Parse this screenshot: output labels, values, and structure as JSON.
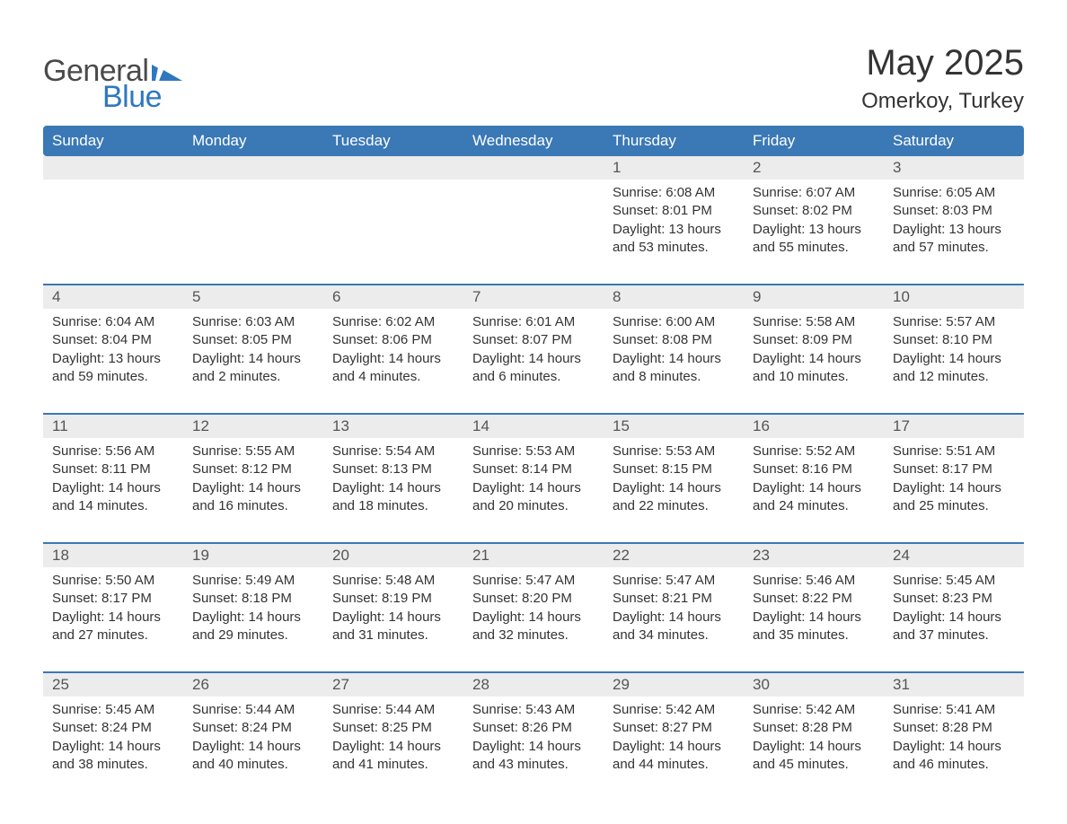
{
  "brand": {
    "part1": "General",
    "part2": "Blue"
  },
  "title": "May 2025",
  "location": "Omerkoy, Turkey",
  "colors": {
    "header_bg": "#3a78b6",
    "header_text": "#ffffff",
    "daynum_bg": "#ececec",
    "text": "#333333",
    "logo_gray": "#4a4a4a",
    "logo_blue": "#2f78bf",
    "page_bg": "#ffffff"
  },
  "day_headers": [
    "Sunday",
    "Monday",
    "Tuesday",
    "Wednesday",
    "Thursday",
    "Friday",
    "Saturday"
  ],
  "weeks": [
    [
      {
        "empty": true
      },
      {
        "empty": true
      },
      {
        "empty": true
      },
      {
        "empty": true
      },
      {
        "n": "1",
        "sunrise": "6:08 AM",
        "sunset": "8:01 PM",
        "daylight": "13 hours and 53 minutes."
      },
      {
        "n": "2",
        "sunrise": "6:07 AM",
        "sunset": "8:02 PM",
        "daylight": "13 hours and 55 minutes."
      },
      {
        "n": "3",
        "sunrise": "6:05 AM",
        "sunset": "8:03 PM",
        "daylight": "13 hours and 57 minutes."
      }
    ],
    [
      {
        "n": "4",
        "sunrise": "6:04 AM",
        "sunset": "8:04 PM",
        "daylight": "13 hours and 59 minutes."
      },
      {
        "n": "5",
        "sunrise": "6:03 AM",
        "sunset": "8:05 PM",
        "daylight": "14 hours and 2 minutes."
      },
      {
        "n": "6",
        "sunrise": "6:02 AM",
        "sunset": "8:06 PM",
        "daylight": "14 hours and 4 minutes."
      },
      {
        "n": "7",
        "sunrise": "6:01 AM",
        "sunset": "8:07 PM",
        "daylight": "14 hours and 6 minutes."
      },
      {
        "n": "8",
        "sunrise": "6:00 AM",
        "sunset": "8:08 PM",
        "daylight": "14 hours and 8 minutes."
      },
      {
        "n": "9",
        "sunrise": "5:58 AM",
        "sunset": "8:09 PM",
        "daylight": "14 hours and 10 minutes."
      },
      {
        "n": "10",
        "sunrise": "5:57 AM",
        "sunset": "8:10 PM",
        "daylight": "14 hours and 12 minutes."
      }
    ],
    [
      {
        "n": "11",
        "sunrise": "5:56 AM",
        "sunset": "8:11 PM",
        "daylight": "14 hours and 14 minutes."
      },
      {
        "n": "12",
        "sunrise": "5:55 AM",
        "sunset": "8:12 PM",
        "daylight": "14 hours and 16 minutes."
      },
      {
        "n": "13",
        "sunrise": "5:54 AM",
        "sunset": "8:13 PM",
        "daylight": "14 hours and 18 minutes."
      },
      {
        "n": "14",
        "sunrise": "5:53 AM",
        "sunset": "8:14 PM",
        "daylight": "14 hours and 20 minutes."
      },
      {
        "n": "15",
        "sunrise": "5:53 AM",
        "sunset": "8:15 PM",
        "daylight": "14 hours and 22 minutes."
      },
      {
        "n": "16",
        "sunrise": "5:52 AM",
        "sunset": "8:16 PM",
        "daylight": "14 hours and 24 minutes."
      },
      {
        "n": "17",
        "sunrise": "5:51 AM",
        "sunset": "8:17 PM",
        "daylight": "14 hours and 25 minutes."
      }
    ],
    [
      {
        "n": "18",
        "sunrise": "5:50 AM",
        "sunset": "8:17 PM",
        "daylight": "14 hours and 27 minutes."
      },
      {
        "n": "19",
        "sunrise": "5:49 AM",
        "sunset": "8:18 PM",
        "daylight": "14 hours and 29 minutes."
      },
      {
        "n": "20",
        "sunrise": "5:48 AM",
        "sunset": "8:19 PM",
        "daylight": "14 hours and 31 minutes."
      },
      {
        "n": "21",
        "sunrise": "5:47 AM",
        "sunset": "8:20 PM",
        "daylight": "14 hours and 32 minutes."
      },
      {
        "n": "22",
        "sunrise": "5:47 AM",
        "sunset": "8:21 PM",
        "daylight": "14 hours and 34 minutes."
      },
      {
        "n": "23",
        "sunrise": "5:46 AM",
        "sunset": "8:22 PM",
        "daylight": "14 hours and 35 minutes."
      },
      {
        "n": "24",
        "sunrise": "5:45 AM",
        "sunset": "8:23 PM",
        "daylight": "14 hours and 37 minutes."
      }
    ],
    [
      {
        "n": "25",
        "sunrise": "5:45 AM",
        "sunset": "8:24 PM",
        "daylight": "14 hours and 38 minutes."
      },
      {
        "n": "26",
        "sunrise": "5:44 AM",
        "sunset": "8:24 PM",
        "daylight": "14 hours and 40 minutes."
      },
      {
        "n": "27",
        "sunrise": "5:44 AM",
        "sunset": "8:25 PM",
        "daylight": "14 hours and 41 minutes."
      },
      {
        "n": "28",
        "sunrise": "5:43 AM",
        "sunset": "8:26 PM",
        "daylight": "14 hours and 43 minutes."
      },
      {
        "n": "29",
        "sunrise": "5:42 AM",
        "sunset": "8:27 PM",
        "daylight": "14 hours and 44 minutes."
      },
      {
        "n": "30",
        "sunrise": "5:42 AM",
        "sunset": "8:28 PM",
        "daylight": "14 hours and 45 minutes."
      },
      {
        "n": "31",
        "sunrise": "5:41 AM",
        "sunset": "8:28 PM",
        "daylight": "14 hours and 46 minutes."
      }
    ]
  ],
  "labels": {
    "sunrise": "Sunrise:",
    "sunset": "Sunset:",
    "daylight": "Daylight:"
  }
}
